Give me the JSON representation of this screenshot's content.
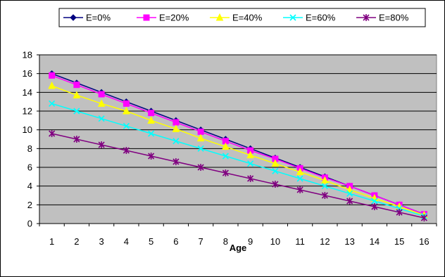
{
  "chart_data": {
    "type": "line",
    "title": "",
    "xlabel": "Age",
    "ylabel": "",
    "categories": [
      "1",
      "2",
      "3",
      "4",
      "5",
      "6",
      "7",
      "8",
      "9",
      "10",
      "11",
      "12",
      "13",
      "14",
      "15",
      "16"
    ],
    "ylim": [
      0,
      18
    ],
    "yticks": [
      0,
      2,
      4,
      6,
      8,
      10,
      12,
      14,
      16,
      18
    ],
    "grid": true,
    "legend_position": "top",
    "plot_background": "#c0c0c0",
    "series": [
      {
        "name": "E=0%",
        "color": "#000080",
        "marker": "diamond",
        "values": [
          16,
          15,
          14,
          13,
          12,
          11,
          10,
          9,
          8,
          7,
          6,
          5,
          4,
          3,
          2,
          1
        ]
      },
      {
        "name": "E=20%",
        "color": "#ff00ff",
        "marker": "square",
        "values": [
          15.8,
          14.8,
          13.8,
          12.8,
          11.8,
          10.8,
          9.8,
          8.8,
          7.8,
          6.9,
          5.9,
          4.9,
          4.0,
          3.0,
          2.0,
          1.0
        ]
      },
      {
        "name": "E=40%",
        "color": "#ffff00",
        "marker": "triangle",
        "values": [
          14.7,
          13.7,
          12.8,
          12.0,
          11.0,
          10.1,
          9.1,
          8.2,
          7.3,
          6.4,
          5.5,
          4.6,
          3.6,
          2.7,
          1.8,
          0.9
        ]
      },
      {
        "name": "E=60%",
        "color": "#00ffff",
        "marker": "x",
        "values": [
          12.8,
          12.0,
          11.2,
          10.4,
          9.6,
          8.8,
          8.0,
          7.2,
          6.4,
          5.6,
          4.8,
          4.0,
          3.2,
          2.4,
          1.6,
          0.8
        ]
      },
      {
        "name": "E=80%",
        "color": "#800080",
        "marker": "star",
        "values": [
          9.6,
          9.0,
          8.4,
          7.8,
          7.2,
          6.6,
          6.0,
          5.4,
          4.8,
          4.2,
          3.6,
          3.0,
          2.4,
          1.8,
          1.2,
          0.6
        ]
      }
    ]
  }
}
